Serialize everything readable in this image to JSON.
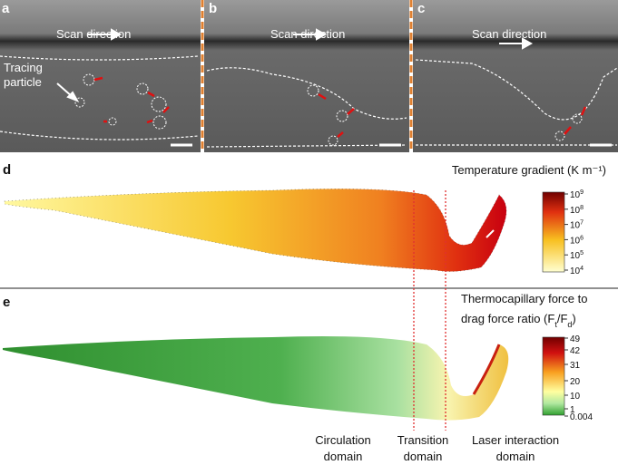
{
  "panels": {
    "a": {
      "label": "a",
      "scan": "Scan direction",
      "annotation": [
        "Tracing",
        "particle"
      ]
    },
    "b": {
      "label": "b",
      "scan": "Scan direction"
    },
    "c": {
      "label": "c",
      "scan": "Scan direction"
    },
    "d": {
      "label": "d",
      "title": "Temperature gradient (K m⁻¹)",
      "colorbar_ticks": [
        {
          "base": "10",
          "exp": "9"
        },
        {
          "base": "10",
          "exp": "8"
        },
        {
          "base": "10",
          "exp": "7"
        },
        {
          "base": "10",
          "exp": "6"
        },
        {
          "base": "10",
          "exp": "5"
        },
        {
          "base": "10",
          "exp": "4"
        }
      ]
    },
    "e": {
      "label": "e",
      "title_line1": "Thermocapillary force to",
      "title_line2": [
        "drag force ratio (F",
        "t",
        "/F",
        "d",
        ")"
      ],
      "colorbar_ticks": [
        "49",
        "42",
        "31",
        "20",
        "10",
        "1",
        "0.004"
      ]
    }
  },
  "domains": [
    [
      "Circulation",
      "domain"
    ],
    [
      "Transition",
      "domain"
    ],
    [
      "Laser interaction",
      "domain"
    ]
  ]
}
